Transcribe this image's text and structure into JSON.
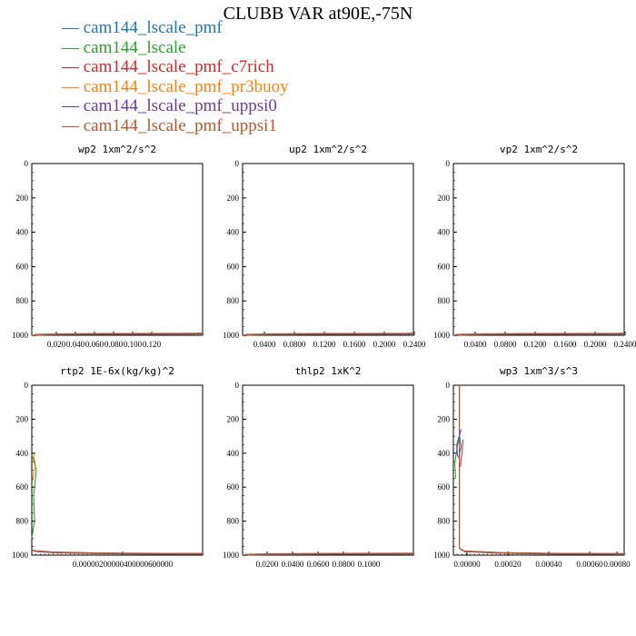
{
  "title": "CLUBB VAR at90E,-75N",
  "legend": [
    {
      "label": "cam144_lscale_pmf",
      "color": "#1f77b4"
    },
    {
      "label": "cam144_lscale",
      "color": "#2ca02c"
    },
    {
      "label": "cam144_lscale_pmf_c7rich",
      "color": "#d62728"
    },
    {
      "label": "cam144_lscale_pmf_pr3buoy",
      "color": "#ff7f0e"
    },
    {
      "label": "cam144_lscale_pmf_uppsi0",
      "color": "#6a3d9a"
    },
    {
      "label": "cam144_lscale_pmf_uppsi1",
      "color": "#b5562f"
    }
  ],
  "chart_data": [
    {
      "type": "line",
      "title": "wp2  1xm^2/s^2",
      "ylim": [
        1000,
        0
      ],
      "yticks": [
        "0",
        "200",
        "400",
        "600",
        "800",
        "1000"
      ],
      "xticks": [
        "0.020",
        "0.040",
        "0.060",
        "0.080",
        "0.100",
        "0.120"
      ],
      "xlim": [
        0,
        0.14
      ],
      "profile": [
        [
          0,
          1000
        ],
        [
          0.005,
          995
        ],
        [
          0.02,
          992
        ],
        [
          0.06,
          990
        ],
        [
          0.13,
          989
        ],
        [
          0.14,
          988
        ]
      ]
    },
    {
      "type": "line",
      "title": "up2  1xm^2/s^2",
      "ylim": [
        1000,
        0
      ],
      "yticks": [
        "0",
        "200",
        "400",
        "600",
        "800",
        "1000"
      ],
      "xticks": [
        "0.0400",
        "0.0800",
        "0.1200",
        "0.1600",
        "0.2000",
        "0.2400"
      ],
      "xlim": [
        0,
        0.27
      ],
      "profile": [
        [
          0,
          1000
        ],
        [
          0.008,
          995
        ],
        [
          0.04,
          992
        ],
        [
          0.12,
          990
        ],
        [
          0.26,
          989
        ],
        [
          0.27,
          988
        ]
      ]
    },
    {
      "type": "line",
      "title": "vp2  1xm^2/s^2",
      "ylim": [
        1000,
        0
      ],
      "yticks": [
        "0",
        "200",
        "400",
        "600",
        "800",
        "1000"
      ],
      "xticks": [
        "0.0400",
        "0.0800",
        "0.1200",
        "0.1600",
        "0.2000",
        "0.2400"
      ],
      "xlim": [
        0,
        0.27
      ],
      "profile": [
        [
          0,
          1000
        ],
        [
          0.008,
          995
        ],
        [
          0.04,
          992
        ],
        [
          0.12,
          990
        ],
        [
          0.26,
          989
        ],
        [
          0.27,
          988
        ]
      ]
    },
    {
      "type": "line",
      "title": "rtp2  1E-6x(kg/kg)^2",
      "ylim": [
        1000,
        0
      ],
      "yticks": [
        "0",
        "200",
        "400",
        "600",
        "800",
        "1000"
      ],
      "xticks": [
        "0.00000200000400000600000"
      ],
      "xlim": [
        0,
        8e-06
      ],
      "profile": [
        [
          0,
          970
        ],
        [
          2e-07,
          975
        ],
        [
          1e-06,
          982
        ],
        [
          3e-06,
          987
        ],
        [
          6e-06,
          990
        ],
        [
          8e-06,
          990
        ]
      ],
      "notes": "small green wiggle near x=0 between 400 and 900"
    },
    {
      "type": "line",
      "title": "thlp2  1xK^2",
      "ylim": [
        1000,
        0
      ],
      "yticks": [
        "0",
        "200",
        "400",
        "600",
        "800",
        "1000"
      ],
      "xticks": [
        "0.0200",
        "0.0400",
        "0.0600",
        "0.0800",
        "0.1000"
      ],
      "xlim": [
        0,
        0.11
      ],
      "profile": [
        [
          0,
          1000
        ],
        [
          0.004,
          995
        ],
        [
          0.02,
          992
        ],
        [
          0.06,
          990
        ],
        [
          0.11,
          989
        ]
      ]
    },
    {
      "type": "line",
      "title": "wp3  1xm^3/s^3",
      "ylim": [
        1000,
        0
      ],
      "yticks": [
        "0",
        "200",
        "400",
        "600",
        "800",
        "1000"
      ],
      "xticks": [
        "0.00000",
        "0.00020",
        "0.00040",
        "0.00060",
        "0.00080"
      ],
      "xlim": [
        -3e-05,
        0.00082
      ],
      "profile": [
        [
          0,
          960
        ],
        [
          2e-05,
          975
        ],
        [
          0.0002,
          985
        ],
        [
          0.0005,
          990
        ],
        [
          0.00082,
          991
        ]
      ],
      "notes": "colored wiggles near x=0 between 250 and 550"
    }
  ]
}
